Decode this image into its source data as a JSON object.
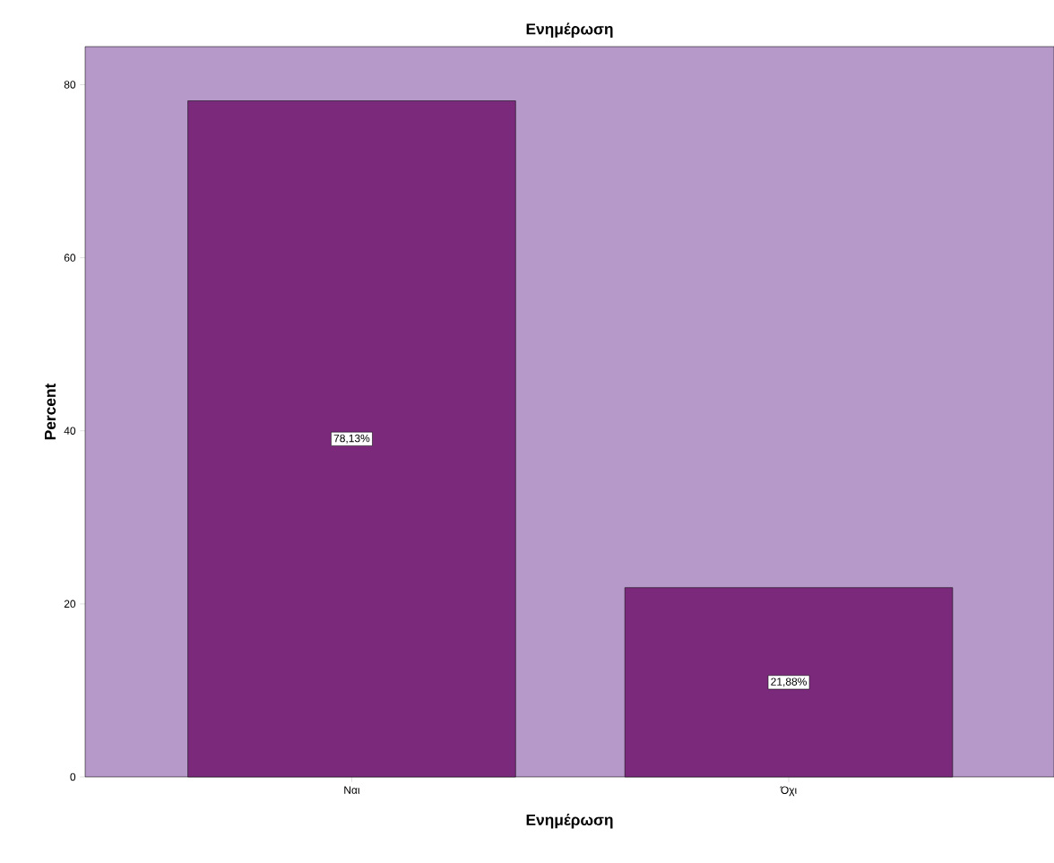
{
  "chart_data": {
    "type": "bar",
    "title": "Ενημέρωση",
    "xlabel": "Ενημέρωση",
    "ylabel": "Percent",
    "categories": [
      "Ναι",
      "Όχι"
    ],
    "values": [
      78.13,
      21.88
    ],
    "value_labels": [
      "78,13%",
      "21,88%"
    ],
    "color": "#7b2a7b",
    "ylim": [
      0,
      84.4
    ],
    "yticks": [
      0,
      20,
      40,
      60,
      80
    ],
    "grid": false
  }
}
